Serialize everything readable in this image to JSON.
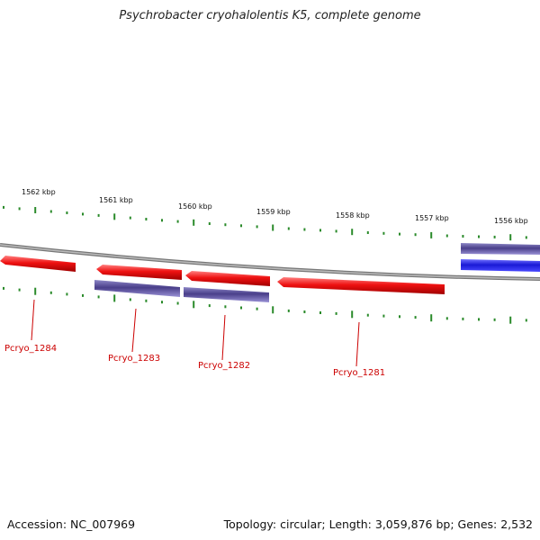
{
  "title": "Psychrobacter cryohalolentis K5, complete genome",
  "accession_label": "Accession: NC_007969",
  "summary_label": "Topology: circular; Length: 3,059,876 bp; Genes: 2,532",
  "kbp_ticks": [
    "1562 kbp",
    "1561 kbp",
    "1560 kbp",
    "1559 kbp",
    "1558 kbp",
    "1557 kbp",
    "1556 kbp"
  ],
  "gene_labels": [
    "Pcryo_1284",
    "Pcryo_1283",
    "Pcryo_1282",
    "Pcryo_1281"
  ],
  "colors": {
    "forward_gene": "#ee1111",
    "reverse_gene": "#4a3f8a",
    "highlight_gene": "#1a1ad6",
    "tick": "#2a8a2a",
    "label": "#cc0000",
    "backbone": "#888888"
  }
}
